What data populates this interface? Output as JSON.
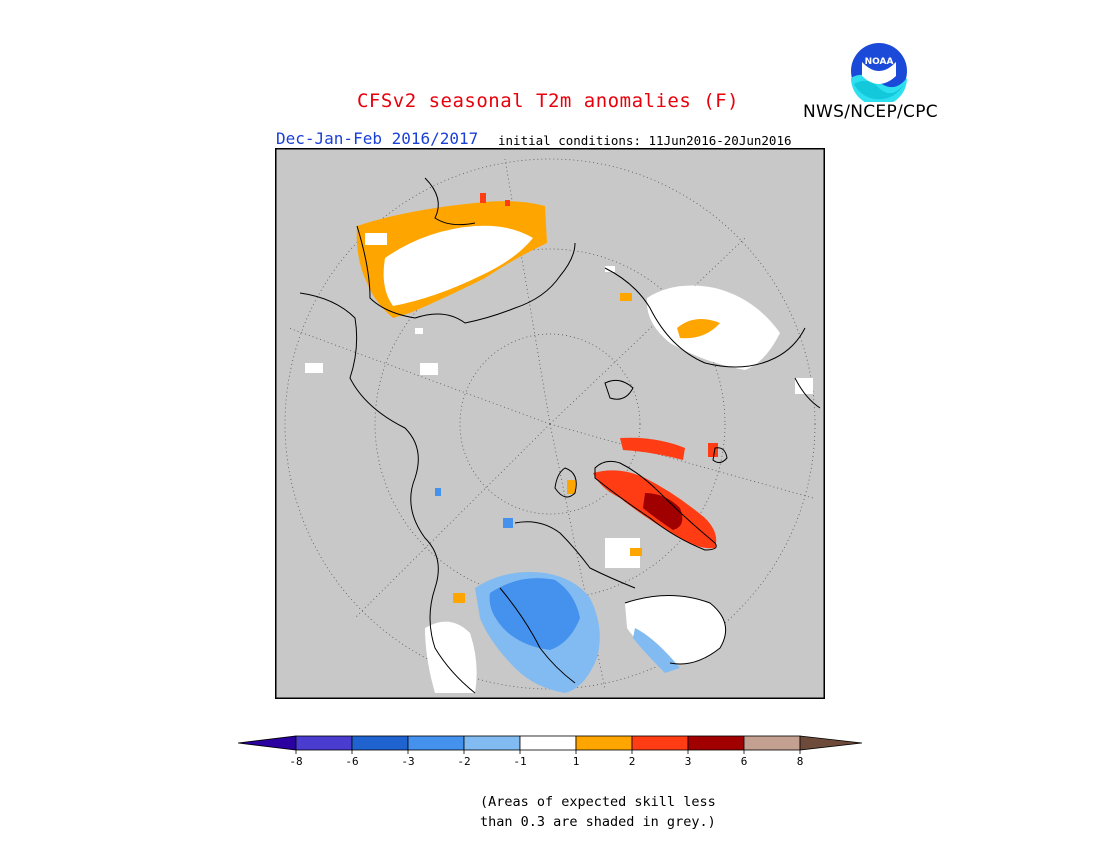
{
  "header": {
    "title": "CFSv2 seasonal T2m anomalies (F)",
    "agency": "NWS/NCEP/CPC",
    "season": "Dec-Jan-Feb 2016/2017",
    "initial_conditions": "initial conditions: 11Jun2016-20Jun2016",
    "logo_text": "NOAA"
  },
  "colorbar": {
    "tick_labels": [
      "-8",
      "-6",
      "-3",
      "-2",
      "-1",
      "1",
      "2",
      "3",
      "6",
      "8"
    ],
    "colors": [
      "#2a00a0",
      "#4a3ccf",
      "#1f63d1",
      "#4492ee",
      "#82bbf1",
      "#ffffff",
      "#ffa500",
      "#ff3c14",
      "#a00000",
      "#c4a090",
      "#6e4a3a"
    ]
  },
  "map": {
    "projection": "north-polar-stereographic",
    "skill_mask_color": "#c8c8c8"
  },
  "footnote": {
    "line1": "(Areas of expected skill less",
    "line2": "than 0.3 are shaded in grey.)"
  }
}
